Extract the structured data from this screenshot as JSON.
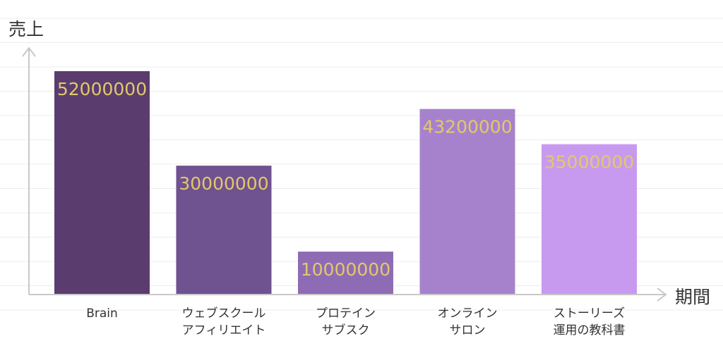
{
  "chart_data": {
    "type": "bar",
    "ylabel": "売上",
    "xlabel": "期間",
    "categories": [
      [
        "Brain"
      ],
      [
        "ウェブスクール",
        "アフィリエイト"
      ],
      [
        "プロテイン",
        "サブスク"
      ],
      [
        "オンライン",
        "サロン"
      ],
      [
        "ストーリーズ",
        "運用の教科書"
      ]
    ],
    "values": [
      52000000,
      30000000,
      10000000,
      43200000,
      35000000
    ],
    "value_labels": [
      "52000000",
      "30000000",
      "10000000",
      "43200000",
      "35000000"
    ],
    "bar_colors": [
      "#5a3d6e",
      "#6f5290",
      "#8e6cb5",
      "#a782cc",
      "#c79af0"
    ],
    "label_color": "#e3c86a",
    "grid_color": "#ececec",
    "axis_color": "#c8c8c8",
    "ylim": [
      0,
      58000000
    ],
    "grid": true,
    "legend": "none"
  }
}
